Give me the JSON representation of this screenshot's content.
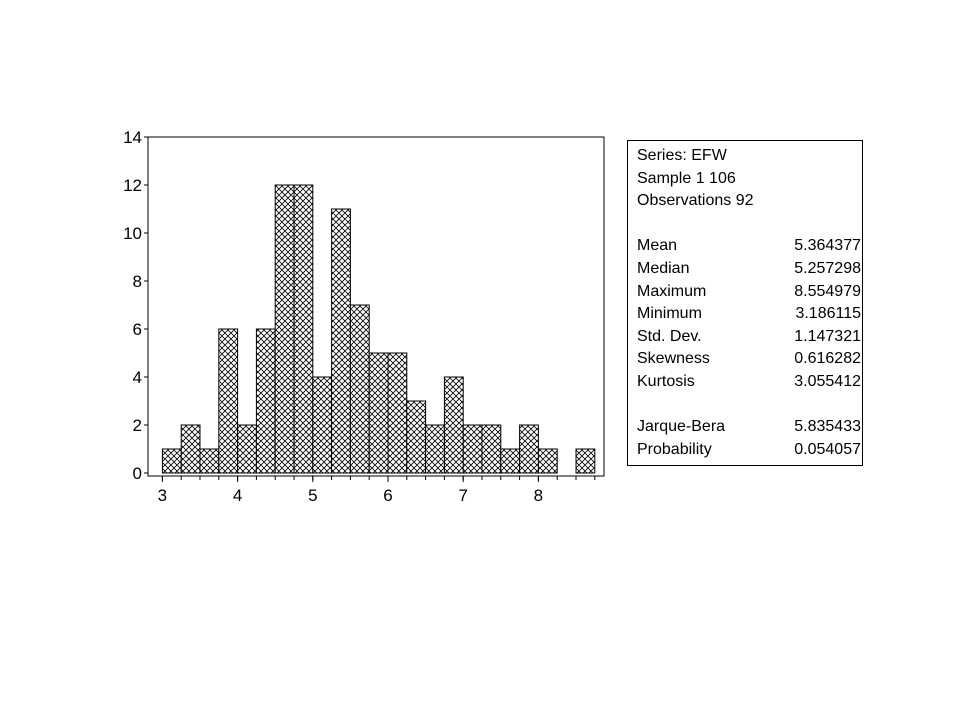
{
  "chart_data": {
    "type": "bar",
    "subtype": "histogram",
    "bin_width": 0.25,
    "bins": [
      {
        "x0": 3.0,
        "x1": 3.25,
        "count": 1
      },
      {
        "x0": 3.25,
        "x1": 3.5,
        "count": 2
      },
      {
        "x0": 3.5,
        "x1": 3.75,
        "count": 1
      },
      {
        "x0": 3.75,
        "x1": 4.0,
        "count": 6
      },
      {
        "x0": 4.0,
        "x1": 4.25,
        "count": 2
      },
      {
        "x0": 4.25,
        "x1": 4.5,
        "count": 6
      },
      {
        "x0": 4.5,
        "x1": 4.75,
        "count": 12
      },
      {
        "x0": 4.75,
        "x1": 5.0,
        "count": 12
      },
      {
        "x0": 5.0,
        "x1": 5.25,
        "count": 4
      },
      {
        "x0": 5.25,
        "x1": 5.5,
        "count": 11
      },
      {
        "x0": 5.5,
        "x1": 5.75,
        "count": 7
      },
      {
        "x0": 5.75,
        "x1": 6.0,
        "count": 5
      },
      {
        "x0": 6.0,
        "x1": 6.25,
        "count": 5
      },
      {
        "x0": 6.25,
        "x1": 6.5,
        "count": 3
      },
      {
        "x0": 6.5,
        "x1": 6.75,
        "count": 2
      },
      {
        "x0": 6.75,
        "x1": 7.0,
        "count": 4
      },
      {
        "x0": 7.0,
        "x1": 7.25,
        "count": 2
      },
      {
        "x0": 7.25,
        "x1": 7.5,
        "count": 2
      },
      {
        "x0": 7.5,
        "x1": 7.75,
        "count": 1
      },
      {
        "x0": 7.75,
        "x1": 8.0,
        "count": 2
      },
      {
        "x0": 8.0,
        "x1": 8.25,
        "count": 1
      },
      {
        "x0": 8.25,
        "x1": 8.5,
        "count": 0
      },
      {
        "x0": 8.5,
        "x1": 8.75,
        "count": 1
      }
    ],
    "xlim": [
      2.95,
      8.85
    ],
    "ylim": [
      0,
      14
    ],
    "x_ticks": [
      "3",
      "4",
      "5",
      "6",
      "7",
      "8"
    ],
    "y_ticks": [
      "0",
      "2",
      "4",
      "6",
      "8",
      "10",
      "12",
      "14"
    ],
    "xlabel": "",
    "ylabel": "",
    "title": "",
    "grid": false,
    "bar_fill": "crosshatch",
    "colors": {
      "bar_stroke": "#000000",
      "hatch": "#000000",
      "background": "#ffffff"
    }
  },
  "stats": {
    "series": "Series: EFW",
    "sample": "Sample 1 106",
    "observations": "Observations 92",
    "rows": [
      {
        "label": "Mean",
        "value": "5.364377"
      },
      {
        "label": "Median",
        "value": "5.257298"
      },
      {
        "label": "Maximum",
        "value": "8.554979"
      },
      {
        "label": "Minimum",
        "value": "3.186115"
      },
      {
        "label": "Std. Dev.",
        "value": "1.147321"
      },
      {
        "label": "Skewness",
        "value": "0.616282"
      },
      {
        "label": "Kurtosis",
        "value": "3.055412"
      }
    ],
    "test_rows": [
      {
        "label": "Jarque-Bera",
        "value": "5.835433"
      },
      {
        "label": "Probability",
        "value": "0.054057"
      }
    ]
  }
}
